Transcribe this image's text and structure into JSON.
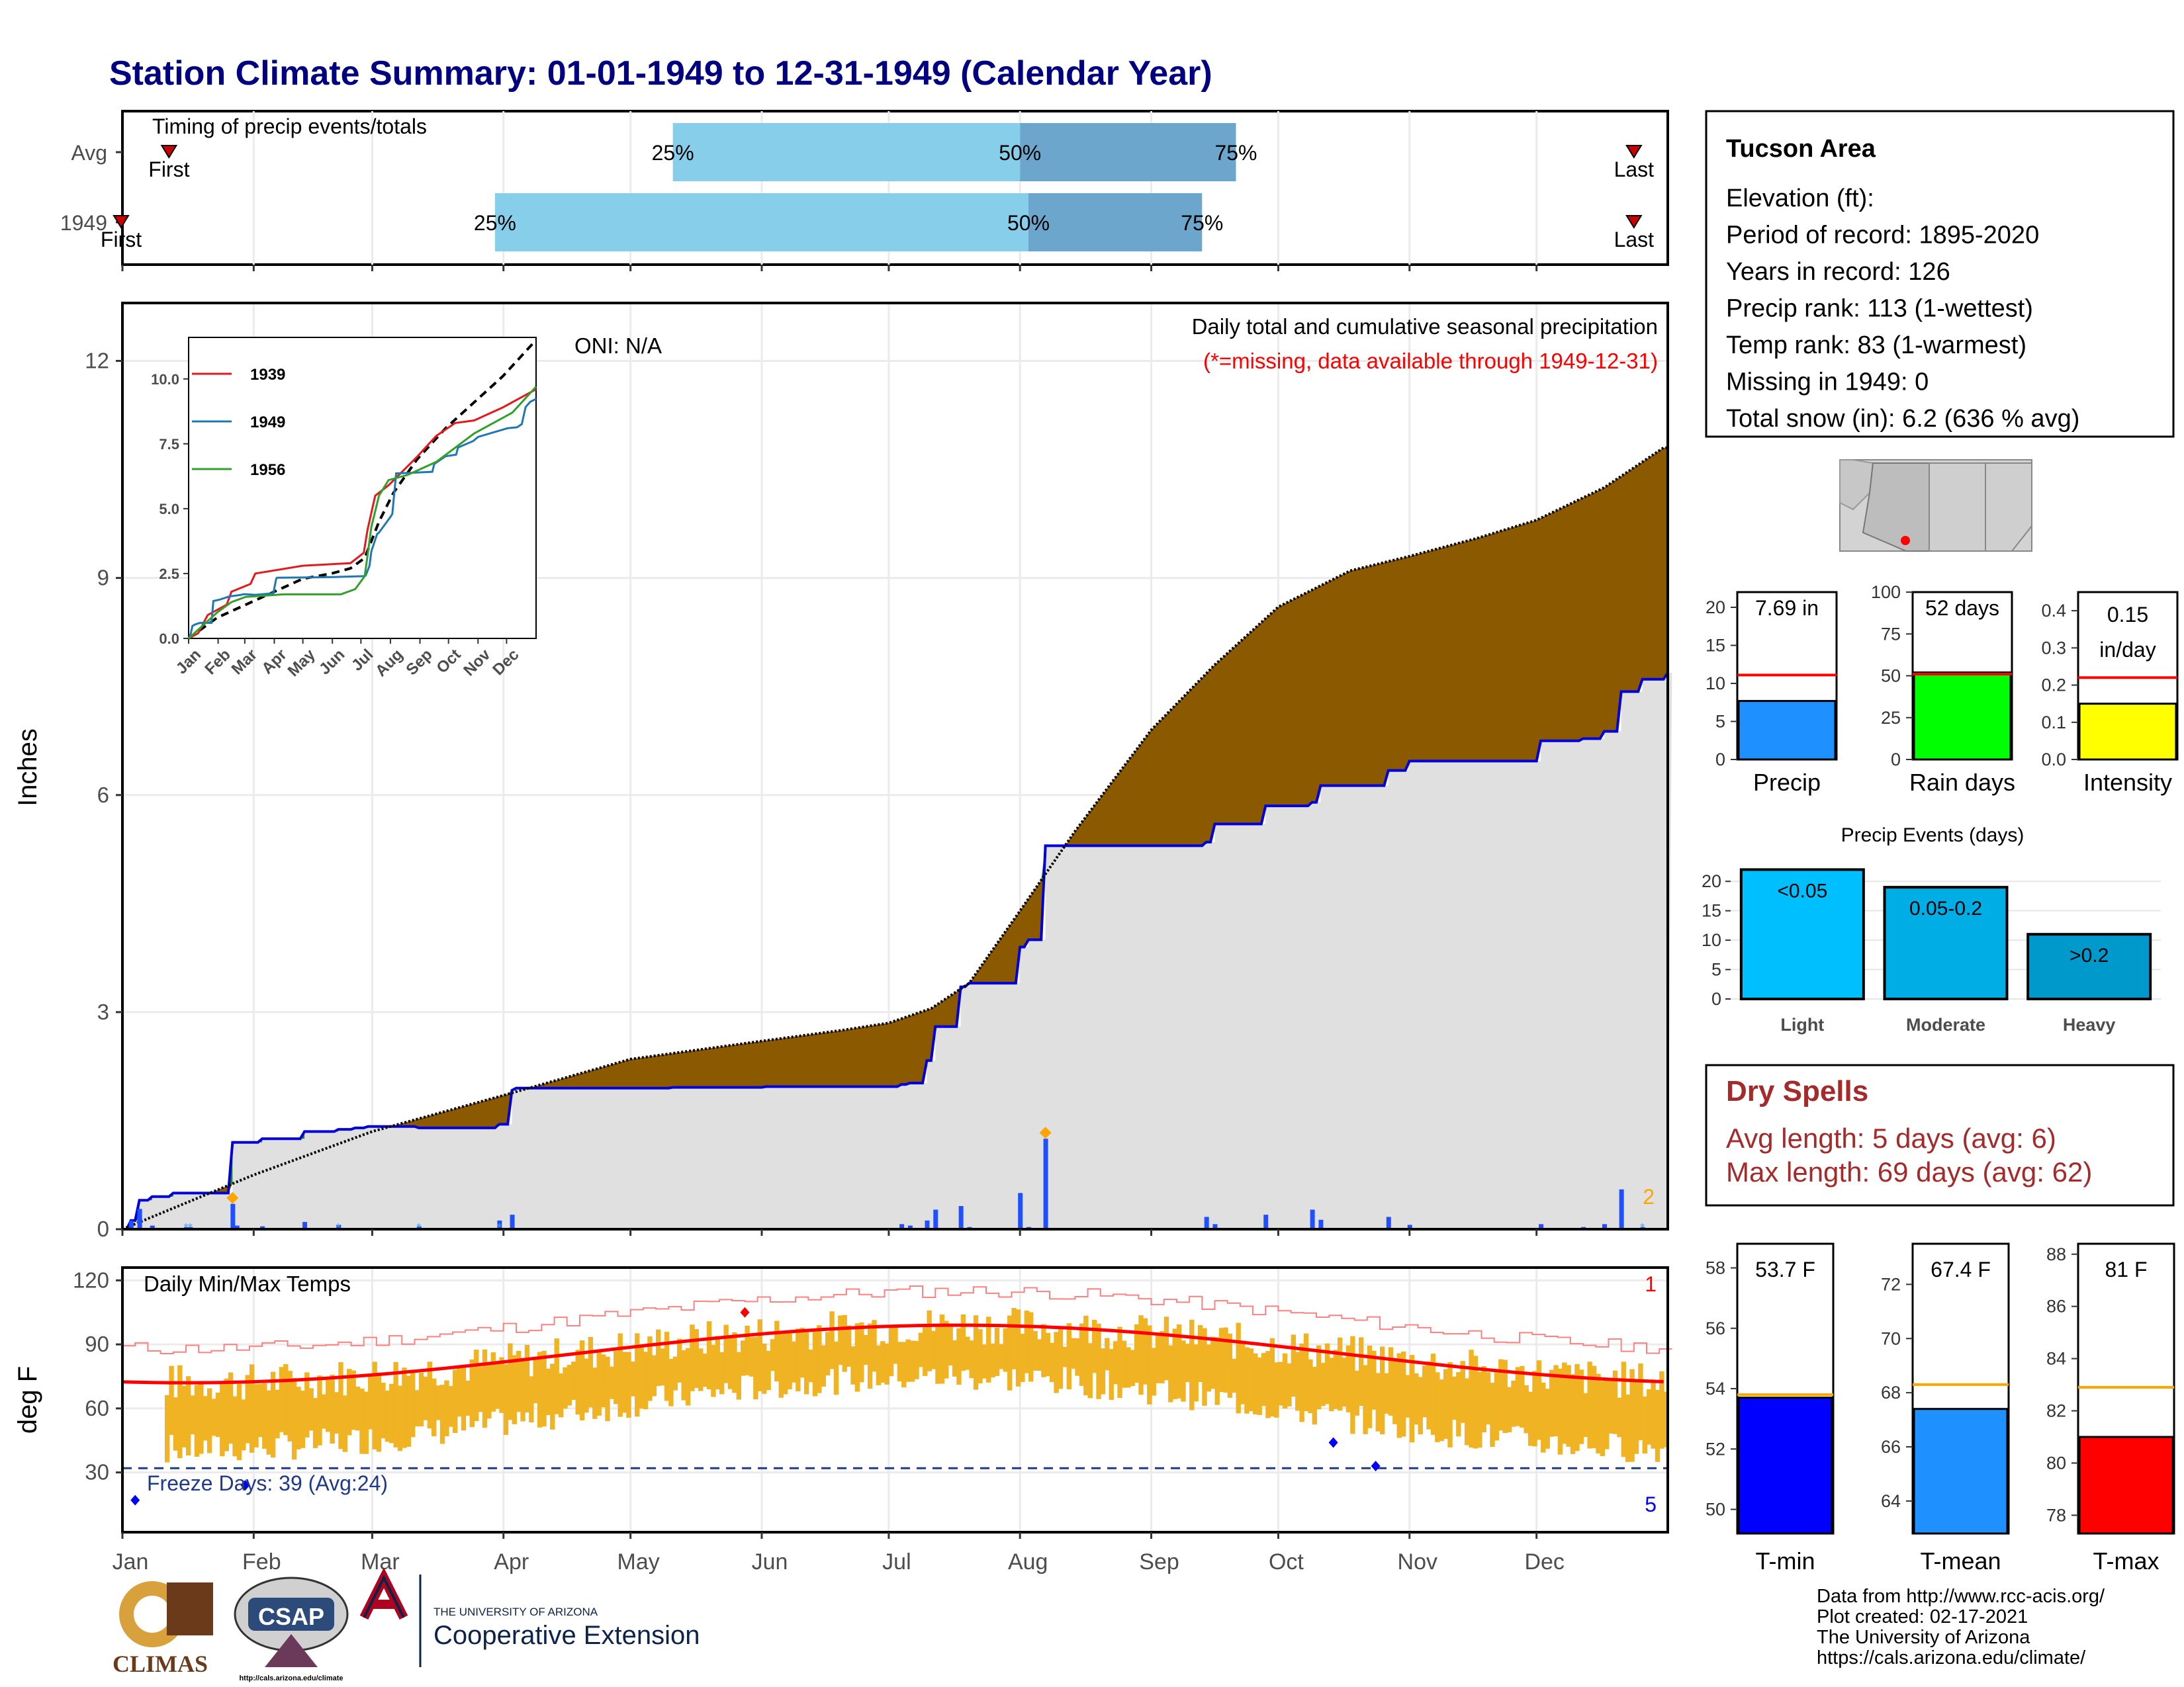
{
  "page": {
    "title": "Station Climate Summary: 01-01-1949 to 12-31-1949 (Calendar Year)"
  },
  "timing": {
    "title": "Timing of precip events/totals",
    "rows": [
      {
        "label": "Avg",
        "first_date": "01-12",
        "last_date": "12-24",
        "p25": "05-11",
        "p50": "08-01",
        "p75": "09-21",
        "first_label": "First",
        "last_label": "Last",
        "p25_label": "25%",
        "p50_label": "50%",
        "p75_label": "75%"
      },
      {
        "label": "1949",
        "first_date": "01-01",
        "last_date": "12-24",
        "p25": "03-30",
        "p50": "08-03",
        "p75": "09-13",
        "first_label": "First",
        "last_label": "Last",
        "p25_label": "25%",
        "p50_label": "50%",
        "p75_label": "75%"
      }
    ],
    "colors": {
      "early": "#87ceeb",
      "late": "#6ca6cd",
      "marker": "#cc0000"
    }
  },
  "precip_panel": {
    "ylabel": "Inches",
    "yticks": [
      "0",
      "3",
      "6",
      "9",
      "12"
    ],
    "ylim": [
      0,
      12
    ],
    "oni_label": "ONI: N/A",
    "legend_line1": "Daily total and cumulative seasonal precipitation",
    "legend_line2": "(*=missing, data available through 1949-12-31)",
    "corner_count": "2",
    "colors": {
      "avg_fill": "#8b5a00",
      "above_fill": "#1a8a1a",
      "year_line": "#0000dd",
      "bg_fill": "#e0e0e0",
      "bar": "#1f4fff",
      "extreme": "#ffa500"
    }
  },
  "inset": {
    "yticks": [
      "0.0",
      "2.5",
      "5.0",
      "7.5",
      "10.0"
    ],
    "xticks": [
      "Jan",
      "Feb",
      "Mar",
      "Apr",
      "May",
      "Jun",
      "Jul",
      "Aug",
      "Sep",
      "Oct",
      "Nov",
      "Dec"
    ],
    "legend": [
      {
        "label": "1939",
        "color": "#e31a1c"
      },
      {
        "label": "1949",
        "color": "#1f78b4"
      },
      {
        "label": "1956",
        "color": "#33a02c"
      }
    ]
  },
  "temp_panel": {
    "ylabel": "deg F",
    "yticks": [
      "30",
      "60",
      "90",
      "120"
    ],
    "title": "Daily Min/Max Temps",
    "freeze_label": "Freeze Days: 39 (Avg:24)",
    "count_top": "1",
    "count_bottom": "5"
  },
  "months": [
    "Jan",
    "Feb",
    "Mar",
    "Apr",
    "May",
    "Jun",
    "Jul",
    "Aug",
    "Sep",
    "Oct",
    "Nov",
    "Dec"
  ],
  "info_box": {
    "title": "Tucson Area",
    "lines": [
      "Elevation (ft):",
      "Period of record: 1895-2020",
      "Years in record: 126",
      "Precip rank: 113 (1-wettest)",
      "Temp rank: 83 (1-warmest)",
      "Missing in 1949: 0",
      "Total snow (in): 6.2 (636 % avg)"
    ]
  },
  "mini_bars": [
    {
      "name": "Precip",
      "value": 7.69,
      "avg": 11.1,
      "label_line1": "7.69 in",
      "label_line2": "",
      "ylim": [
        0,
        22
      ],
      "yticks": [
        "0",
        "5",
        "10",
        "15",
        "20"
      ],
      "tickvals": [
        0,
        5,
        10,
        15,
        20
      ],
      "color": "#1e90ff"
    },
    {
      "name": "Rain days",
      "value": 52,
      "avg": 51,
      "label_line1": "52 days",
      "label_line2": "",
      "ylim": [
        0,
        100
      ],
      "yticks": [
        "0",
        "25",
        "50",
        "75",
        "100"
      ],
      "tickvals": [
        0,
        25,
        50,
        75,
        100
      ],
      "color": "#00ff00"
    },
    {
      "name": "Intensity",
      "value": 0.15,
      "avg": 0.22,
      "label_line1": "0.15",
      "label_line2": "in/day",
      "ylim": [
        0,
        0.45
      ],
      "yticks": [
        "0.0",
        "0.1",
        "0.2",
        "0.3",
        "0.4"
      ],
      "tickvals": [
        0,
        0.1,
        0.2,
        0.3,
        0.4
      ],
      "color": "#ffff00"
    }
  ],
  "events": {
    "title": "Precip Events (days)",
    "yticks": [
      "0",
      "5",
      "10",
      "15",
      "20"
    ],
    "ylim": [
      0,
      22.5
    ],
    "categories": [
      "Light",
      "Moderate",
      "Heavy"
    ],
    "bar_labels": [
      "<0.05",
      "0.05-0.2",
      ">0.2"
    ],
    "values": [
      22,
      19,
      11
    ],
    "colors": [
      "#00bfff",
      "#00aee6",
      "#0099cc"
    ]
  },
  "dry_spells": {
    "title": "Dry Spells",
    "line1": "Avg length: 5 days (avg: 6)",
    "line2": "Max length: 69 days (avg: 62)"
  },
  "temp_bars": [
    {
      "name": "T-min",
      "value": 53.7,
      "avg": 53.8,
      "label": "53.7 F",
      "ylim": [
        49.2,
        58.8
      ],
      "yticks": [
        "50",
        "52",
        "54",
        "56",
        "58"
      ],
      "tickvals": [
        50,
        52,
        54,
        56,
        58
      ],
      "color": "#0000ff"
    },
    {
      "name": "T-mean",
      "value": 67.4,
      "avg": 68.3,
      "label": "67.4 F",
      "ylim": [
        62.8,
        73.5
      ],
      "yticks": [
        "64",
        "66",
        "68",
        "70",
        "72"
      ],
      "tickvals": [
        64,
        66,
        68,
        70,
        72
      ],
      "color": "#1e90ff"
    },
    {
      "name": "T-max",
      "value": 81,
      "avg": 82.9,
      "label": "81 F",
      "ylim": [
        77.3,
        88.4
      ],
      "yticks": [
        "78",
        "80",
        "82",
        "84",
        "86",
        "88"
      ],
      "tickvals": [
        78,
        80,
        82,
        84,
        86,
        88
      ],
      "color": "#ff0000"
    }
  ],
  "footer": {
    "lines": [
      "Data from http://www.rcc-acis.org/",
      "Plot created: 02-17-2021",
      "The University of Arizona",
      "https://cals.arizona.edu/climate/"
    ]
  },
  "logos": {
    "climas": "CLIMAS",
    "csap": "CSAP",
    "csap_url": "http://cals.arizona.edu/climate",
    "ua_small": "THE UNIVERSITY OF ARIZONA",
    "ua_big": "Cooperative Extension"
  }
}
